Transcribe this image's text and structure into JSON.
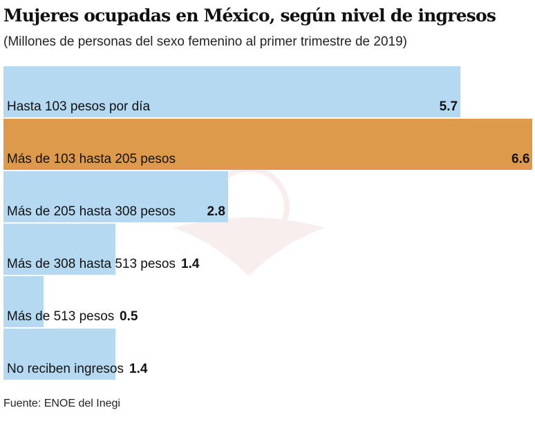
{
  "chart_data": {
    "type": "bar",
    "orientation": "horizontal",
    "title": "Mujeres ocupadas en México, según nivel de ingresos",
    "subtitle": "(Millones de personas del sexo femenino al primer trimestre de 2019)",
    "categories": [
      "Hasta 103 pesos por día",
      "Más de 103 hasta 205 pesos",
      "Más de 205 hasta 308 pesos",
      "Más de 308 hasta 513 pesos",
      "Más de 513 pesos",
      "No reciben ingresos"
    ],
    "values": [
      5.7,
      6.6,
      2.8,
      1.4,
      0.5,
      1.4
    ],
    "value_labels": [
      "5.7",
      "6.6",
      "2.8",
      "1.4",
      "0.5",
      "1.4"
    ],
    "colors": [
      "#b6d9f2",
      "#dd9a4b",
      "#b6d9f2",
      "#b6d9f2",
      "#b6d9f2",
      "#b6d9f2"
    ],
    "xlim": [
      0,
      6.6
    ],
    "grid": false,
    "source": "Fuente: ENOE del Inegi"
  }
}
